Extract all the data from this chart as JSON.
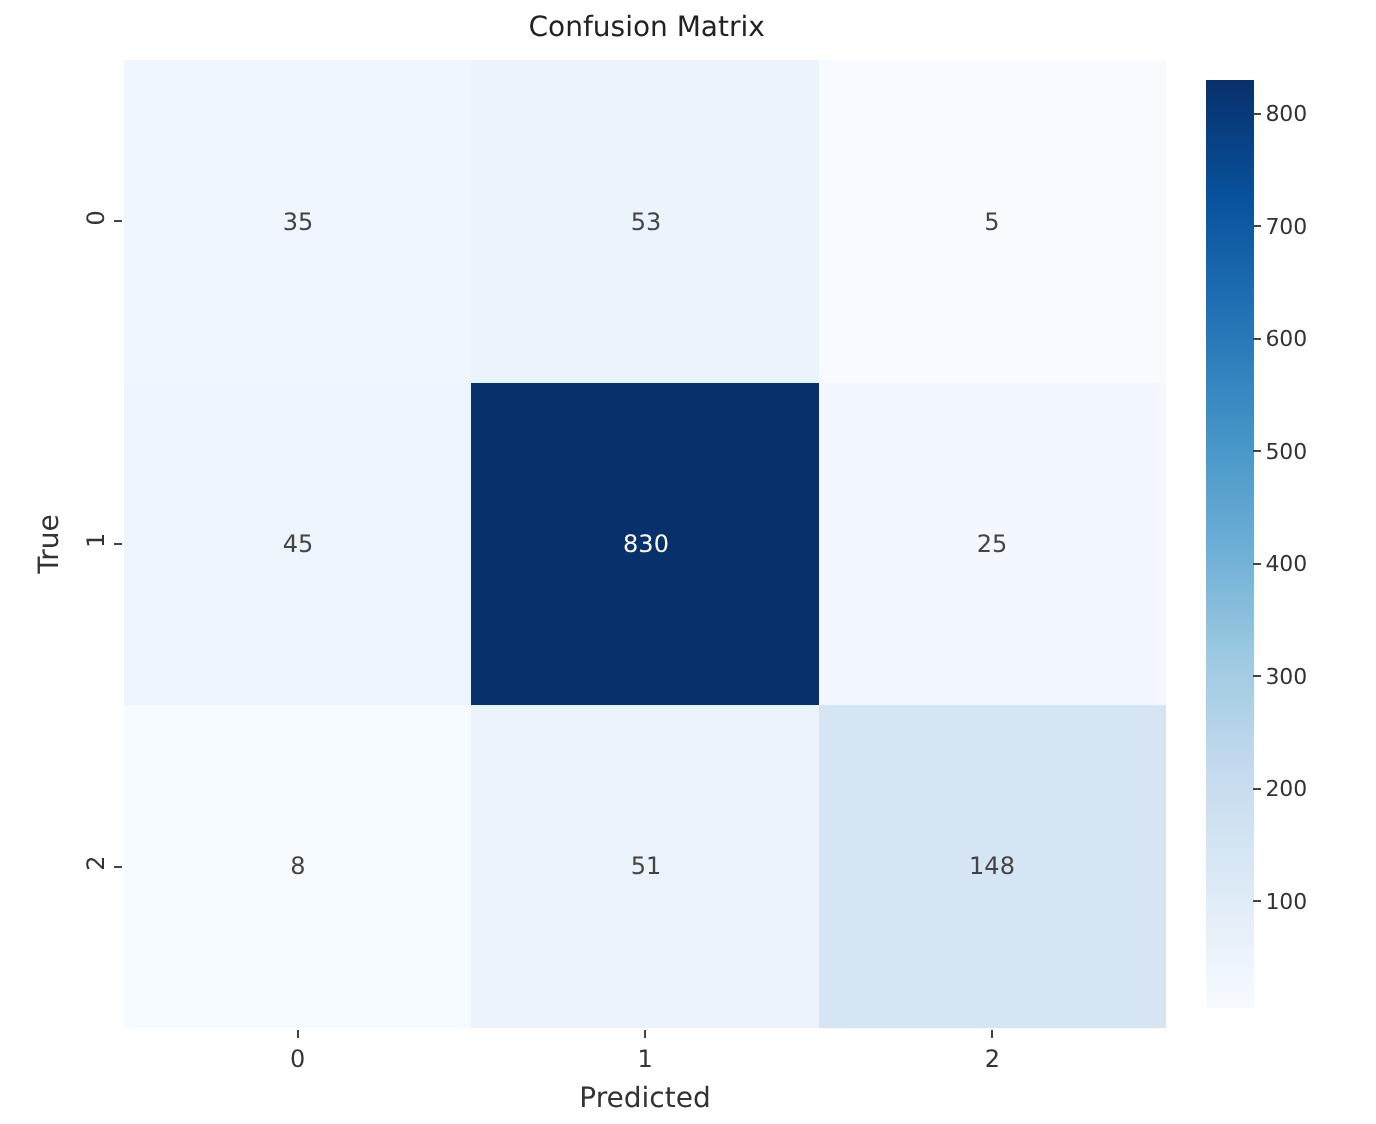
{
  "chart_data": {
    "type": "heatmap",
    "title": "Confusion Matrix",
    "xlabel": "Predicted",
    "ylabel": "True",
    "categories": [
      "0",
      "1",
      "2"
    ],
    "y_categories": [
      "0",
      "1",
      "2"
    ],
    "cells": [
      [
        35,
        53,
        5
      ],
      [
        45,
        830,
        25
      ],
      [
        8,
        51,
        148
      ]
    ],
    "data_labels": true,
    "clim": [
      5,
      830
    ],
    "cticks": [
      100,
      200,
      300,
      400,
      500,
      600,
      700,
      800
    ]
  }
}
